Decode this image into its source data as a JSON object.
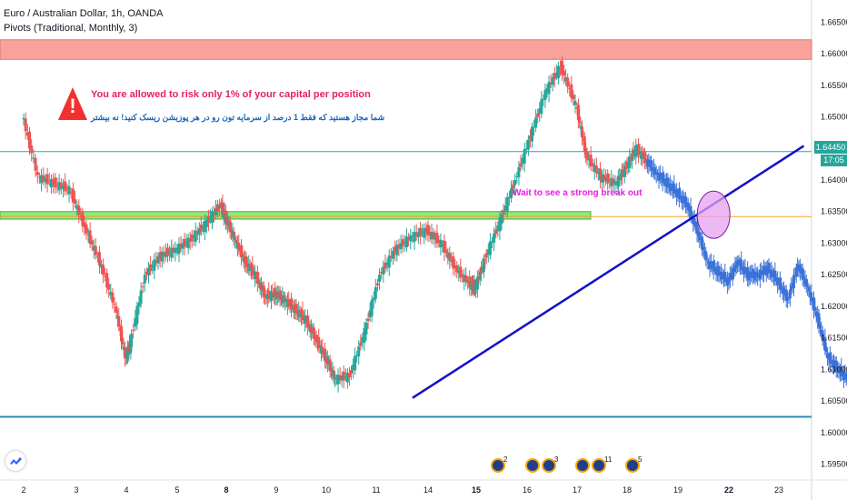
{
  "header": {
    "symbol_line": "Euro / Australian Dollar, 1h, OANDA",
    "indicator_line": "Pivots (Traditional, Monthly, 3)"
  },
  "annotations": {
    "risk_note_en": "You are allowed to risk only 1% of your capital per position",
    "risk_note_fa": "شما مجاز هستید که فقط 1 درصد از سرمایه تون رو در هر پوزیشن ریسک کنید! نه بیشتر",
    "break_note": "Wait to see a strong break out",
    "warning_icon": "warning-triangle-icon"
  },
  "price_tag": {
    "value": "1.64450",
    "timer": "17:05"
  },
  "colors": {
    "up": "#26a69a",
    "down": "#ef5350",
    "projection": "#3a72d8",
    "trendline": "#1410c8",
    "resistance_zone": "#f8a29b",
    "support_zone": "#8ee87a",
    "circle": "#e6a0f0"
  },
  "event_markers": [
    {
      "date": "Oct 14",
      "count": "2"
    },
    {
      "date": "Oct 15",
      "count": ""
    },
    {
      "date": "Oct 15",
      "count": "3"
    },
    {
      "date": "Oct 17",
      "count": ""
    },
    {
      "date": "Oct 17",
      "count": "11"
    },
    {
      "date": "Oct 18",
      "count": "5"
    }
  ],
  "chart_data": {
    "type": "line",
    "title": "Euro / Australian Dollar, 1h, OANDA",
    "xlabel": "",
    "ylabel": "",
    "x_ticks": [
      "2",
      "3",
      "4",
      "5",
      "8",
      "9",
      "10",
      "11",
      "14",
      "15",
      "16",
      "17",
      "18",
      "19",
      "22",
      "23"
    ],
    "x_ticks_bold": [
      "8",
      "15",
      "22"
    ],
    "y_ticks": [
      "1.66500",
      "1.66000",
      "1.65500",
      "1.65000",
      "1.64500",
      "1.64000",
      "1.63500",
      "1.63000",
      "1.62500",
      "1.62000",
      "1.61500",
      "1.61000",
      "1.60500",
      "1.60000",
      "1.59500"
    ],
    "ylim": [
      1.5925,
      1.6685
    ],
    "grid": false,
    "series": [
      {
        "kind": "historical",
        "x": [
          1.0,
          1.3,
          1.6,
          1.9,
          2.2,
          2.5,
          2.8,
          3.0,
          3.1,
          3.4,
          3.7,
          4.0,
          4.3,
          4.6,
          4.9,
          5.0,
          5.2,
          5.4,
          5.6,
          5.8,
          6.0,
          6.2,
          6.4,
          6.6,
          6.8,
          7.0,
          7.2,
          7.5,
          7.8,
          8.1,
          8.4,
          8.7,
          9.0,
          9.3,
          9.6,
          9.9,
          10.0,
          10.2,
          10.5,
          10.8,
          11.1,
          11.4,
          11.7,
          12.0,
          12.2,
          12.5,
          12.8,
          13.0,
          13.2,
          13.4
        ],
        "close": [
          1.6505,
          1.6405,
          1.6395,
          1.6385,
          1.6325,
          1.627,
          1.62,
          1.612,
          1.614,
          1.625,
          1.628,
          1.629,
          1.6305,
          1.633,
          1.636,
          1.634,
          1.6305,
          1.627,
          1.625,
          1.6215,
          1.622,
          1.621,
          1.6195,
          1.618,
          1.615,
          1.612,
          1.6085,
          1.609,
          1.616,
          1.625,
          1.629,
          1.631,
          1.632,
          1.63,
          1.626,
          1.6235,
          1.623,
          1.6275,
          1.6335,
          1.64,
          1.647,
          1.654,
          1.658,
          1.652,
          1.644,
          1.6405,
          1.6395,
          1.642,
          1.645,
          1.643
        ]
      },
      {
        "kind": "projection",
        "x": [
          13.4,
          13.6,
          13.8,
          14.0,
          14.2,
          14.4,
          14.6,
          14.8,
          15.0,
          15.2,
          15.4,
          15.6,
          15.8,
          16.0,
          16.2,
          16.4,
          16.6,
          16.8,
          17.0,
          17.2,
          17.4,
          17.6,
          17.8,
          18.0,
          18.2,
          18.4
        ],
        "close": [
          1.643,
          1.641,
          1.6395,
          1.638,
          1.636,
          1.632,
          1.627,
          1.6255,
          1.624,
          1.627,
          1.625,
          1.625,
          1.626,
          1.624,
          1.621,
          1.6265,
          1.623,
          1.618,
          1.612,
          1.61,
          1.6085,
          1.6075,
          1.606,
          1.605,
          1.604,
          1.6045
        ]
      }
    ],
    "zones": [
      {
        "name": "resistance",
        "from": 1.6591,
        "to": 1.6622
      },
      {
        "name": "support",
        "from": 1.6338,
        "to": 1.635
      }
    ],
    "horizontal_lines": [
      1.6445,
      1.6342,
      1.6025
    ],
    "trendline": {
      "from": [
        8.7,
        1.6055
      ],
      "to": [
        16.5,
        1.6454
      ]
    },
    "highlight_circle": {
      "x": 14.7,
      "y": 1.6345
    }
  }
}
